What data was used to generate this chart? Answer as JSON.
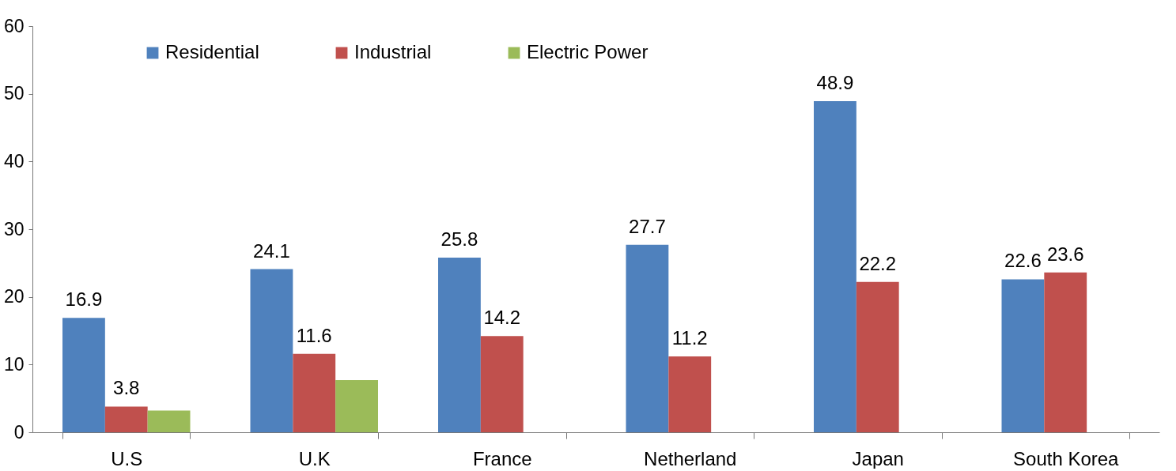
{
  "chart_data": {
    "type": "bar",
    "categories": [
      "U.S",
      "U.K",
      "France",
      "Netherland",
      "Japan",
      "South Korea"
    ],
    "series": [
      {
        "name": "Residential",
        "color": "#4f81bd",
        "values": [
          16.9,
          24.1,
          25.8,
          27.7,
          48.9,
          22.6
        ],
        "value_labels": [
          "16.9",
          "24.1",
          "25.8",
          "27.7",
          "48.9",
          "22.6"
        ]
      },
      {
        "name": "Industrial",
        "color": "#c0504d",
        "values": [
          3.8,
          11.6,
          14.2,
          11.2,
          22.2,
          23.6
        ],
        "value_labels": [
          "3.8",
          "11.6",
          "14.2",
          "11.2",
          "22.2",
          "23.6"
        ]
      },
      {
        "name": "Electric Power",
        "color": "#9bbb59",
        "values": [
          3.2,
          7.7,
          null,
          null,
          null,
          null
        ]
      }
    ],
    "ylim": [
      0,
      60
    ],
    "yticks": [
      0,
      10,
      20,
      30,
      40,
      50,
      60
    ],
    "legend": "top left"
  }
}
